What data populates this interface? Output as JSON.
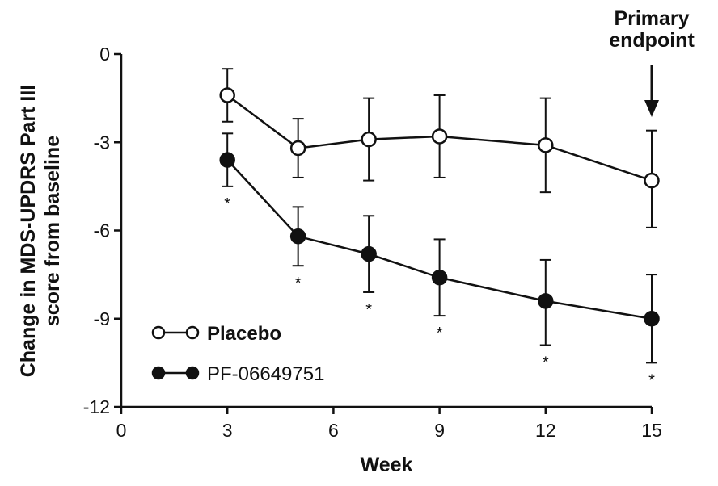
{
  "chart_data": {
    "type": "line",
    "xlabel": "Week",
    "ylabel_lines": [
      "Change in MDS-UPDRS Part III",
      "score from baseline"
    ],
    "xlim": [
      0,
      15
    ],
    "ylim": [
      -12,
      0
    ],
    "xticks": [
      0,
      3,
      6,
      9,
      12,
      15
    ],
    "yticks": [
      0,
      -3,
      -6,
      -9,
      -12
    ],
    "grid": false,
    "legend_position": "bottom-left",
    "series": [
      {
        "name": "Placebo",
        "marker": "open-circle",
        "x": [
          3,
          5,
          7,
          9,
          12,
          15
        ],
        "y": [
          -1.4,
          -3.2,
          -2.9,
          -2.8,
          -3.1,
          -4.3
        ],
        "err_upper": [
          -0.5,
          -2.2,
          -1.5,
          -1.4,
          -1.5,
          -2.6
        ],
        "err_lower": [
          -2.3,
          -4.2,
          -4.3,
          -4.2,
          -4.7,
          -5.9
        ]
      },
      {
        "name": "PF-06649751",
        "marker": "filled-circle",
        "x": [
          3,
          5,
          7,
          9,
          12,
          15
        ],
        "y": [
          -3.6,
          -6.2,
          -6.8,
          -7.6,
          -8.4,
          -9.0
        ],
        "err_upper": [
          -2.7,
          -5.2,
          -5.5,
          -6.3,
          -7.0,
          -7.5
        ],
        "err_lower": [
          -4.5,
          -7.2,
          -8.1,
          -8.9,
          -9.9,
          -10.5
        ]
      }
    ],
    "significance": {
      "symbol": "*",
      "x": [
        3,
        5,
        7,
        9,
        12,
        15
      ]
    },
    "annotation": {
      "lines": [
        "Primary",
        "endpoint"
      ],
      "x": 15
    }
  }
}
